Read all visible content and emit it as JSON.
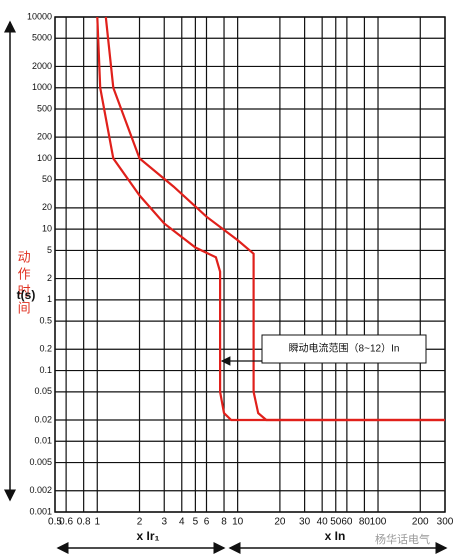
{
  "chart_data": {
    "type": "line",
    "ylabel_cn": "动作时间",
    "ylabel_unit": "t(s)",
    "xlabel_left": "x Ir₁",
    "xlabel_right": "x In",
    "annotation": "瞬动电流范围（8~12）In",
    "watermark": "杨华话电气",
    "log_x": true,
    "log_y": true,
    "grid": true,
    "xlim": [
      0.5,
      300
    ],
    "ylim": [
      0.001,
      10000
    ],
    "xticks": [
      0.5,
      0.6,
      0.8,
      1,
      2,
      3,
      4,
      5,
      6,
      8,
      10,
      20,
      30,
      40,
      50,
      60,
      80,
      100,
      200,
      300
    ],
    "yticks": [
      0.001,
      0.002,
      0.005,
      0.01,
      0.02,
      0.05,
      0.1,
      0.2,
      0.5,
      1,
      2,
      5,
      10,
      20,
      50,
      100,
      200,
      500,
      1000,
      2000,
      5000,
      10000
    ],
    "series": [
      {
        "color": "#e0201b",
        "x": [
          1.0,
          1.05,
          1.3,
          2,
          3,
          5,
          7,
          7.5,
          7.5,
          8,
          9,
          300
        ],
        "values": [
          10000,
          1000,
          100,
          30,
          12,
          5.5,
          4,
          2.5,
          0.05,
          0.025,
          0.02,
          0.02
        ]
      },
      {
        "color": "#e0201b",
        "x": [
          1.15,
          1.3,
          2,
          3.5,
          6,
          10,
          13,
          13,
          14,
          16,
          300
        ],
        "values": [
          10000,
          1000,
          100,
          40,
          15,
          7,
          4.5,
          0.05,
          0.025,
          0.02,
          0.02
        ]
      }
    ]
  }
}
